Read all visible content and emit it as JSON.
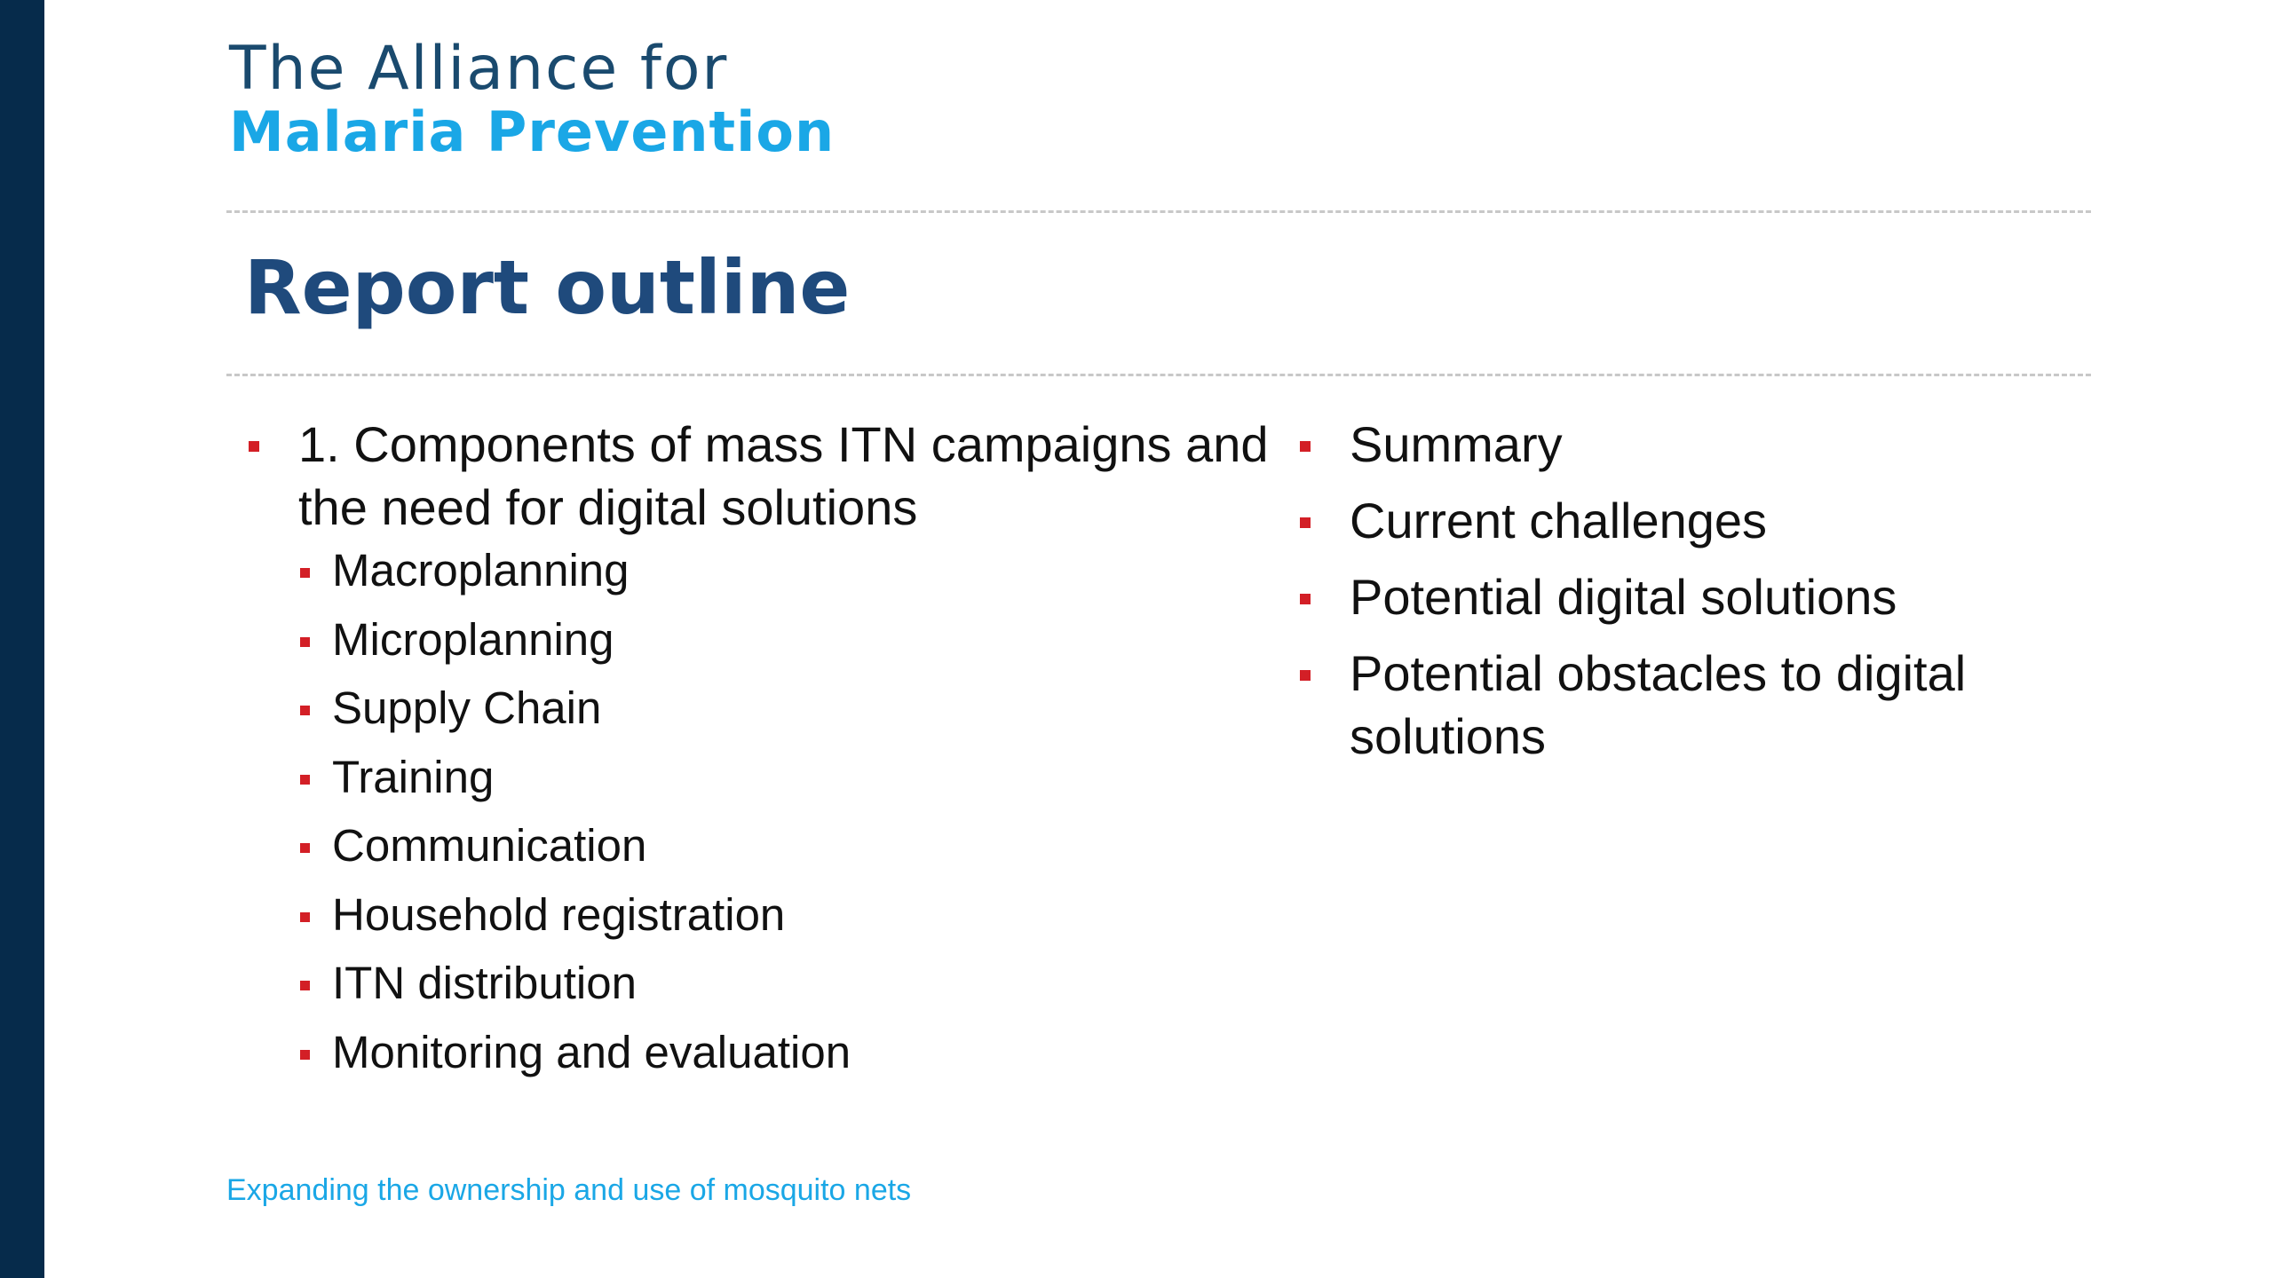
{
  "colors": {
    "sidebar": "#062b4b",
    "logo_line1": "#1a4a6e",
    "logo_line2": "#1aa7e6",
    "title": "#1f4a7c",
    "bullet": "#d31f26",
    "text": "#111111",
    "footer": "#1aa7e6"
  },
  "logo": {
    "line1": "The Alliance for",
    "line2": "Malaria Prevention"
  },
  "title": "Report outline",
  "left_column": {
    "main_item": "1. Components of mass ITN campaigns and the need for digital solutions",
    "sub_items": [
      "Macroplanning",
      "Microplanning",
      "Supply Chain",
      "Training",
      "Communication",
      "Household registration",
      "ITN distribution",
      "Monitoring and evaluation"
    ]
  },
  "right_column": {
    "items": [
      "Summary",
      "Current challenges",
      "Potential digital solutions",
      "Potential obstacles to digital solutions"
    ]
  },
  "footer": "Expanding the ownership and use of mosquito nets"
}
